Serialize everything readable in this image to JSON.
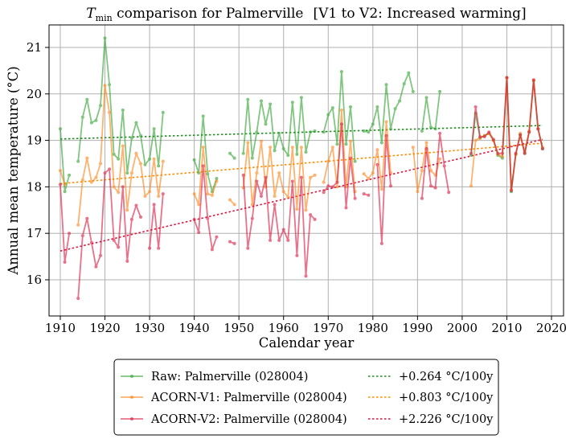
{
  "chart_data": {
    "type": "line",
    "title": {
      "var_italic": "T",
      "var_sub": "min",
      "text": " comparison for Palmerville",
      "suffix": "[V1 to V2: Increased warming]"
    },
    "xlabel": "Calendar year",
    "ylabel": "Annual mean temperature (°C)",
    "xlim": [
      1908,
      2021
    ],
    "ylim": [
      15.35,
      21.5
    ],
    "xticks": [
      1910,
      1920,
      1930,
      1940,
      1950,
      1960,
      1970,
      1980,
      1990,
      2000,
      2010,
      2020
    ],
    "yticks": [
      16,
      17,
      18,
      19,
      20,
      21
    ],
    "grid": true,
    "legend_position": "bottom-outside",
    "series": [
      {
        "name": "Raw: Palmerville (028004)",
        "color": "#2ca02c",
        "style": "line-marker",
        "points": [
          [
            1910,
            19.25
          ],
          [
            1911,
            17.9
          ],
          [
            1912,
            18.25
          ],
          null,
          [
            1914,
            18.55
          ],
          [
            1915,
            19.5
          ],
          [
            1916,
            19.88
          ],
          [
            1917,
            19.38
          ],
          [
            1918,
            19.43
          ],
          [
            1919,
            19.75
          ],
          [
            1920,
            21.2
          ],
          [
            1921,
            20.2
          ],
          [
            1922,
            18.7
          ],
          [
            1923,
            18.6
          ],
          [
            1924,
            19.65
          ],
          [
            1925,
            18.3
          ],
          [
            1926,
            19.05
          ],
          [
            1927,
            19.38
          ],
          [
            1928,
            19.1
          ],
          [
            1929,
            18.48
          ],
          [
            1930,
            18.6
          ],
          [
            1931,
            19.25
          ],
          [
            1932,
            18.45
          ],
          [
            1933,
            19.6
          ],
          null,
          [
            1940,
            18.58
          ],
          [
            1941,
            18.3
          ],
          [
            1942,
            19.52
          ],
          [
            1943,
            18.28
          ],
          [
            1944,
            17.9
          ],
          [
            1945,
            18.18
          ],
          null,
          [
            1948,
            18.72
          ],
          [
            1949,
            18.62
          ],
          null,
          [
            1951,
            18.72
          ],
          [
            1952,
            19.88
          ],
          [
            1953,
            18.62
          ],
          [
            1954,
            19.18
          ],
          [
            1955,
            19.85
          ],
          [
            1956,
            19.35
          ],
          [
            1957,
            19.78
          ],
          [
            1958,
            18.78
          ],
          [
            1959,
            19.15
          ],
          [
            1960,
            18.82
          ],
          [
            1961,
            18.68
          ],
          [
            1962,
            19.82
          ],
          [
            1963,
            18.7
          ],
          [
            1964,
            19.92
          ],
          [
            1965,
            18.75
          ],
          [
            1966,
            19.18
          ],
          [
            1967,
            19.2
          ],
          null,
          [
            1969,
            19.18
          ],
          [
            1970,
            19.55
          ],
          [
            1971,
            19.7
          ],
          [
            1972,
            18.92
          ],
          [
            1973,
            20.48
          ],
          [
            1974,
            18.92
          ],
          [
            1975,
            19.72
          ],
          [
            1976,
            18.55
          ],
          null,
          [
            1978,
            19.2
          ],
          [
            1979,
            19.18
          ],
          [
            1980,
            19.35
          ],
          [
            1981,
            19.72
          ],
          [
            1982,
            18.95
          ],
          [
            1983,
            20.2
          ],
          [
            1984,
            19.25
          ],
          [
            1985,
            19.68
          ],
          [
            1986,
            19.85
          ],
          [
            1987,
            20.22
          ],
          [
            1988,
            20.45
          ],
          [
            1989,
            20.05
          ],
          null,
          [
            1991,
            19.2
          ],
          [
            1992,
            19.92
          ],
          [
            1993,
            19.28
          ],
          [
            1994,
            19.25
          ],
          [
            1995,
            20.05
          ],
          null,
          [
            2002,
            18.68
          ],
          [
            2003,
            19.58
          ],
          [
            2004,
            19.05
          ],
          [
            2005,
            19.1
          ],
          [
            2006,
            19.15
          ],
          [
            2007,
            19.0
          ],
          [
            2008,
            18.68
          ],
          [
            2009,
            18.62
          ],
          [
            2010,
            20.35
          ],
          [
            2011,
            17.9
          ],
          [
            2012,
            18.7
          ],
          [
            2013,
            19.12
          ],
          [
            2014,
            18.72
          ],
          [
            2015,
            19.18
          ],
          [
            2016,
            20.28
          ],
          [
            2017,
            19.25
          ],
          [
            2018,
            18.82
          ]
        ]
      },
      {
        "name": "ACORN-V1: Palmerville (028004)",
        "color": "#ff7f0e",
        "style": "line-marker",
        "points": [
          [
            1910,
            18.35
          ],
          [
            1911,
            18.05
          ],
          null,
          [
            1914,
            17.18
          ],
          [
            1915,
            18.15
          ],
          [
            1916,
            18.62
          ],
          [
            1917,
            18.1
          ],
          [
            1918,
            18.2
          ],
          [
            1919,
            18.5
          ],
          [
            1920,
            20.18
          ],
          [
            1921,
            19.6
          ],
          [
            1922,
            18.0
          ],
          [
            1923,
            17.88
          ],
          [
            1924,
            18.88
          ],
          [
            1925,
            17.5
          ],
          [
            1926,
            18.3
          ],
          [
            1927,
            18.72
          ],
          [
            1928,
            18.5
          ],
          [
            1929,
            17.8
          ],
          [
            1930,
            17.9
          ],
          [
            1931,
            18.6
          ],
          [
            1932,
            17.8
          ],
          [
            1933,
            18.55
          ],
          null,
          [
            1940,
            17.85
          ],
          [
            1941,
            17.62
          ],
          [
            1942,
            18.85
          ],
          [
            1943,
            17.85
          ],
          [
            1944,
            17.82
          ],
          [
            1945,
            18.12
          ],
          null,
          [
            1948,
            17.72
          ],
          [
            1949,
            17.62
          ],
          null,
          [
            1951,
            17.98
          ],
          [
            1952,
            18.95
          ],
          [
            1953,
            17.62
          ],
          [
            1954,
            18.3
          ],
          [
            1955,
            18.98
          ],
          [
            1956,
            18.0
          ],
          [
            1957,
            18.85
          ],
          [
            1958,
            17.8
          ],
          [
            1959,
            18.3
          ],
          [
            1960,
            17.9
          ],
          [
            1961,
            17.78
          ],
          [
            1962,
            18.85
          ],
          [
            1963,
            17.52
          ],
          [
            1964,
            18.85
          ],
          [
            1965,
            17.5
          ],
          [
            1966,
            18.2
          ],
          [
            1967,
            18.25
          ],
          null,
          [
            1969,
            18.1
          ],
          [
            1970,
            18.55
          ],
          [
            1971,
            18.85
          ],
          [
            1972,
            18.0
          ],
          [
            1973,
            19.65
          ],
          [
            1974,
            18.0
          ],
          [
            1975,
            18.98
          ],
          [
            1976,
            17.9
          ],
          null,
          [
            1978,
            18.28
          ],
          [
            1979,
            18.18
          ],
          [
            1980,
            18.3
          ],
          [
            1981,
            18.8
          ],
          [
            1982,
            17.95
          ],
          [
            1983,
            19.4
          ],
          [
            1984,
            18.3
          ],
          null,
          [
            1989,
            18.85
          ],
          [
            1990,
            17.9
          ],
          [
            1991,
            18.35
          ],
          [
            1992,
            18.95
          ],
          [
            1993,
            18.35
          ],
          [
            1994,
            18.25
          ],
          [
            1995,
            18.6
          ],
          null,
          [
            2002,
            18.02
          ],
          [
            2003,
            19.0
          ],
          [
            2004,
            19.05
          ],
          [
            2005,
            19.1
          ],
          [
            2006,
            19.15
          ],
          [
            2007,
            19.0
          ],
          [
            2008,
            18.7
          ],
          [
            2009,
            18.65
          ],
          [
            2010,
            20.35
          ],
          [
            2011,
            17.95
          ],
          [
            2012,
            18.7
          ],
          [
            2013,
            19.15
          ],
          [
            2014,
            18.75
          ],
          [
            2015,
            19.2
          ],
          [
            2016,
            20.3
          ],
          [
            2017,
            19.25
          ],
          [
            2018,
            18.85
          ]
        ]
      },
      {
        "name": "ACORN-V2: Palmerville (028004)",
        "color": "#dc143c",
        "style": "line-marker",
        "points": [
          [
            1910,
            18.05
          ],
          [
            1911,
            16.38
          ],
          [
            1912,
            17.0
          ],
          null,
          [
            1914,
            15.6
          ],
          [
            1915,
            16.95
          ],
          [
            1916,
            17.32
          ],
          [
            1917,
            16.8
          ],
          [
            1918,
            16.28
          ],
          [
            1919,
            16.52
          ],
          [
            1920,
            18.3
          ],
          [
            1921,
            18.38
          ],
          [
            1922,
            16.85
          ],
          [
            1923,
            16.7
          ],
          [
            1924,
            18.0
          ],
          [
            1925,
            16.4
          ],
          [
            1926,
            17.3
          ],
          [
            1927,
            17.6
          ],
          [
            1928,
            17.35
          ],
          null,
          [
            1930,
            16.68
          ],
          [
            1931,
            17.62
          ],
          [
            1932,
            16.68
          ],
          [
            1933,
            17.85
          ],
          null,
          [
            1940,
            17.3
          ],
          [
            1941,
            17.02
          ],
          [
            1942,
            18.45
          ],
          [
            1943,
            17.32
          ],
          [
            1944,
            16.65
          ],
          [
            1945,
            16.92
          ],
          null,
          [
            1948,
            16.82
          ],
          [
            1949,
            16.78
          ],
          null,
          [
            1951,
            18.25
          ],
          [
            1952,
            16.68
          ],
          [
            1953,
            17.32
          ],
          [
            1954,
            18.12
          ],
          [
            1955,
            17.8
          ],
          [
            1956,
            18.2
          ],
          [
            1957,
            16.85
          ],
          [
            1958,
            17.62
          ],
          [
            1959,
            16.85
          ],
          [
            1960,
            17.08
          ],
          [
            1961,
            16.85
          ],
          [
            1962,
            18.12
          ],
          [
            1963,
            16.52
          ],
          [
            1964,
            18.2
          ],
          [
            1965,
            16.08
          ],
          [
            1966,
            17.4
          ],
          [
            1967,
            17.3
          ],
          null,
          [
            1969,
            17.88
          ],
          [
            1970,
            18.02
          ],
          [
            1971,
            18.0
          ],
          [
            1972,
            18.1
          ],
          [
            1973,
            19.35
          ],
          [
            1974,
            17.55
          ],
          [
            1975,
            18.62
          ],
          [
            1976,
            17.75
          ],
          null,
          [
            1978,
            17.85
          ],
          [
            1979,
            17.82
          ],
          null,
          [
            1981,
            18.48
          ],
          [
            1982,
            16.78
          ],
          [
            1983,
            19.1
          ],
          [
            1984,
            18.02
          ],
          null,
          [
            1991,
            17.75
          ],
          [
            1992,
            18.82
          ],
          [
            1993,
            18.02
          ],
          [
            1994,
            17.98
          ],
          [
            1995,
            19.15
          ],
          [
            1996,
            18.45
          ],
          [
            1997,
            17.88
          ],
          null,
          [
            2002,
            18.72
          ],
          [
            2003,
            19.72
          ],
          [
            2004,
            19.08
          ],
          [
            2005,
            19.08
          ],
          [
            2006,
            19.18
          ],
          [
            2007,
            19.02
          ],
          [
            2008,
            18.72
          ],
          [
            2009,
            18.72
          ],
          [
            2010,
            20.35
          ],
          [
            2011,
            17.92
          ],
          [
            2012,
            18.72
          ],
          [
            2013,
            19.12
          ],
          [
            2014,
            18.72
          ],
          [
            2015,
            19.18
          ],
          [
            2016,
            20.3
          ],
          [
            2017,
            19.25
          ],
          [
            2018,
            18.82
          ]
        ]
      }
    ],
    "trends": [
      {
        "name": "+0.264 °C/100y",
        "color": "#228b22",
        "x": [
          1910,
          2018
        ],
        "y": [
          19.03,
          19.32
        ]
      },
      {
        "name": "+0.803 °C/100y",
        "color": "#ff8c00",
        "x": [
          1910,
          2018
        ],
        "y": [
          18.07,
          18.94
        ]
      },
      {
        "name": "+2.226 °C/100y",
        "color": "#dc143c",
        "x": [
          1910,
          2018
        ],
        "y": [
          16.62,
          19.02
        ]
      }
    ]
  },
  "legend": {
    "left": [
      {
        "label": "Raw: Palmerville (028004)",
        "color": "#2ca02c"
      },
      {
        "label": "ACORN-V1: Palmerville (028004)",
        "color": "#ff7f0e"
      },
      {
        "label": "ACORN-V2: Palmerville (028004)",
        "color": "#dc143c"
      }
    ],
    "right": [
      {
        "label": "+0.264 °C/100y",
        "color": "#228b22"
      },
      {
        "label": "+0.803 °C/100y",
        "color": "#ff8c00"
      },
      {
        "label": "+2.226 °C/100y",
        "color": "#dc143c"
      }
    ]
  }
}
